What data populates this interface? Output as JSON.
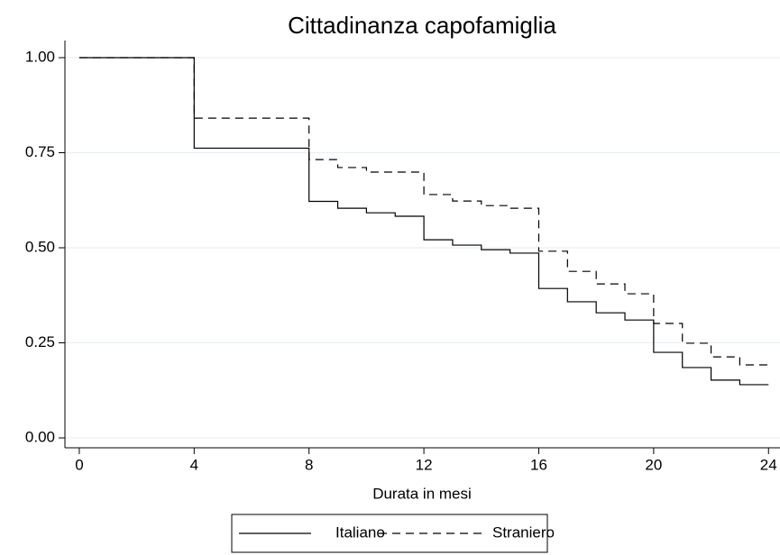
{
  "chart_data": {
    "type": "step",
    "title": "Cittadinanza capofamiglia",
    "x_label": "Durata in mesi",
    "x": [
      0,
      4,
      8,
      9,
      10,
      11,
      12,
      13,
      14,
      15,
      16,
      17,
      18,
      19,
      20,
      21,
      22,
      23,
      24
    ],
    "series": [
      {
        "name": "Italiano",
        "color": "#000000",
        "line_style": "solid",
        "values": [
          1.0,
          0.762,
          0.622,
          0.604,
          0.592,
          0.583,
          0.521,
          0.507,
          0.495,
          0.486,
          0.393,
          0.358,
          0.329,
          0.31,
          0.225,
          0.185,
          0.152,
          0.14,
          0.14
        ]
      },
      {
        "name": "Straniero",
        "color": "#000000",
        "line_style": "dashed",
        "values": [
          1.0,
          0.841,
          0.732,
          0.711,
          0.699,
          0.699,
          0.64,
          0.623,
          0.611,
          0.604,
          0.491,
          0.438,
          0.405,
          0.379,
          0.301,
          0.249,
          0.213,
          0.192,
          0.192
        ]
      }
    ],
    "xlim": [
      -0.5,
      24.4
    ],
    "xticks": [
      0,
      4,
      8,
      12,
      16,
      20,
      24
    ],
    "ylim": [
      -0.026,
      1.045
    ],
    "yticks": [
      {
        "value": 0,
        "label": "0.00"
      },
      {
        "value": 0.25,
        "label": "0.25"
      },
      {
        "value": 0.5,
        "label": "0.50"
      },
      {
        "value": 0.75,
        "label": "0.75"
      },
      {
        "value": 1,
        "label": "1.00"
      }
    ],
    "grid": true,
    "legend": "bottom"
  }
}
